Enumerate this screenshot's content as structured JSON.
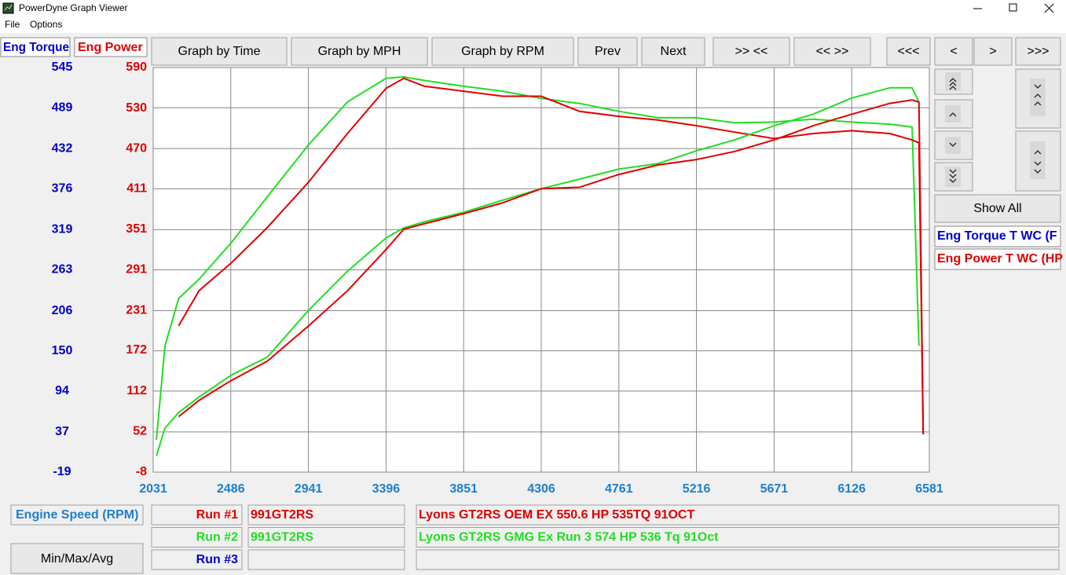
{
  "window": {
    "title": "PowerDyne Graph Viewer"
  },
  "menu": [
    "File",
    "Options"
  ],
  "axis_headers": [
    "Eng Torque",
    "Eng Power"
  ],
  "buttons": [
    "Graph by Time",
    "Graph by MPH",
    "Graph by RPM",
    "Prev",
    "Next",
    ">> <<",
    "<< >>",
    "<<<",
    "<",
    ">",
    ">>>"
  ],
  "side": {
    "show_all": "Show All",
    "channels": [
      "Eng Torque T WC (F",
      "Eng Power T WC (HP"
    ]
  },
  "x_axis_label": "Engine Speed (RPM)",
  "runs": [
    {
      "label": "Run #1",
      "color": "#e00000",
      "car": "991GT2RS",
      "description": "Lyons GT2RS OEM EX 550.6 HP 535TQ 91OCT"
    },
    {
      "label": "Run #2",
      "color": "#22dd22",
      "car": "991GT2RS",
      "description": "Lyons GT2RS GMG Ex Run 3 574 HP 536 Tq 91Oct"
    },
    {
      "label": "Run #3",
      "color": "#0000cc"
    }
  ],
  "min_max_button": "Min/Max/Avg",
  "chart_data": {
    "type": "line",
    "x": [
      2050,
      2100,
      2180,
      2300,
      2486,
      2700,
      2941,
      3170,
      3396,
      3500,
      3620,
      3851,
      4080,
      4306,
      4530,
      4761,
      4990,
      5216,
      5440,
      5671,
      5900,
      6126,
      6350,
      6480,
      6520,
      6545
    ],
    "xlim": [
      2031,
      6581
    ],
    "xticks": [
      2031,
      2486,
      2941,
      3396,
      3851,
      4306,
      4761,
      5216,
      5671,
      6126,
      6581
    ],
    "ylim": [
      -19,
      545
    ],
    "yticks": [
      -19,
      37,
      94,
      150,
      206,
      263,
      319,
      376,
      432,
      489,
      545
    ],
    "y2lim": [
      -8,
      590
    ],
    "y2ticks": [
      -8,
      52,
      112,
      172,
      231,
      291,
      351,
      411,
      470,
      530,
      590
    ],
    "grid": true,
    "series": [
      {
        "color": "#22dd22",
        "axis": "y",
        "values": [
          26,
          157,
          223,
          250,
          300,
          365,
          437,
          497,
          530,
          532,
          527,
          519,
          512,
          502,
          495,
          484,
          475,
          475,
          468,
          469,
          473,
          469,
          466,
          462,
          157,
          null
        ]
      },
      {
        "color": "#e00000",
        "axis": "y",
        "values": [
          null,
          null,
          185,
          234,
          272,
          322,
          385,
          453,
          516,
          530,
          519,
          512,
          505,
          505,
          484,
          477,
          472,
          464,
          455,
          446,
          453,
          457,
          453,
          444,
          440,
          34
        ]
      },
      {
        "color": "#22dd22",
        "axis": "y2",
        "values": [
          16,
          57,
          80,
          103,
          135,
          162,
          231,
          289,
          338,
          353,
          362,
          376,
          394,
          411,
          425,
          440,
          448,
          467,
          483,
          504,
          521,
          545,
          560,
          560,
          539,
          null
        ]
      },
      {
        "color": "#e00000",
        "axis": "y2",
        "values": [
          null,
          null,
          74,
          98,
          127,
          156,
          208,
          260,
          321,
          351,
          359,
          374,
          390,
          411,
          413,
          432,
          446,
          454,
          466,
          483,
          504,
          521,
          537,
          542,
          539,
          48
        ]
      }
    ]
  }
}
